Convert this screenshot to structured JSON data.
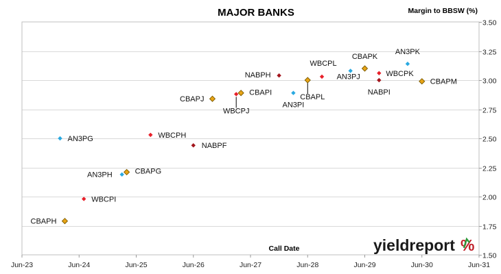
{
  "chart_data": {
    "type": "scatter",
    "title": "MAJOR BANKS",
    "ylabel": "Margin to BBSW (%)",
    "xlabel": "Call Date",
    "x_ticks": [
      "Jun-23",
      "Jun-24",
      "Jun-25",
      "Jun-26",
      "Jun-27",
      "Jun-28",
      "Jun-29",
      "Jun-30",
      "Jun-31"
    ],
    "y_ticks": [
      "1.50",
      "1.75",
      "2.00",
      "2.25",
      "2.50",
      "2.75",
      "3.00",
      "3.25",
      "3.50"
    ],
    "xlim": [
      "2023-06",
      "2031-06"
    ],
    "ylim": [
      1.5,
      3.5
    ],
    "grid": "horizontal",
    "y_axis_side": "right",
    "colors": {
      "ANZ": "#29a9e1",
      "WBC": "#e8202a",
      "NAB": "#a3161d",
      "CBA": "#e8a416",
      "CBA_border": "#7a5a00"
    },
    "points": [
      {
        "label": "CBAPH",
        "date": "2024-03",
        "y": 1.79,
        "group": "CBA"
      },
      {
        "label": "WBCPI",
        "date": "2024-07",
        "y": 1.98,
        "group": "WBC"
      },
      {
        "label": "AN3PG",
        "date": "2024-02",
        "y": 2.5,
        "group": "ANZ"
      },
      {
        "label": "AN3PH",
        "date": "2025-03",
        "y": 2.19,
        "group": "ANZ"
      },
      {
        "label": "CBAPG",
        "date": "2025-04",
        "y": 2.21,
        "group": "CBA"
      },
      {
        "label": "WBCPH",
        "date": "2025-09",
        "y": 2.53,
        "group": "WBC"
      },
      {
        "label": "NABPF",
        "date": "2026-06",
        "y": 2.44,
        "group": "NAB"
      },
      {
        "label": "CBAPJ",
        "date": "2026-10",
        "y": 2.84,
        "group": "CBA"
      },
      {
        "label": "WBCPJ",
        "date": "2027-03",
        "y": 2.88,
        "group": "WBC"
      },
      {
        "label": "CBAPI",
        "date": "2027-04",
        "y": 2.89,
        "group": "CBA"
      },
      {
        "label": "NABPH",
        "date": "2027-12",
        "y": 3.04,
        "group": "NAB"
      },
      {
        "label": "AN3PI",
        "date": "2028-03",
        "y": 2.89,
        "group": "ANZ"
      },
      {
        "label": "CBAPL",
        "date": "2028-06",
        "y": 3.0,
        "group": "CBA"
      },
      {
        "label": "WBCPL",
        "date": "2028-09",
        "y": 3.03,
        "group": "WBC"
      },
      {
        "label": "AN3PJ",
        "date": "2029-03",
        "y": 3.08,
        "group": "ANZ"
      },
      {
        "label": "CBAPK",
        "date": "2029-06",
        "y": 3.1,
        "group": "CBA"
      },
      {
        "label": "NABPI",
        "date": "2029-09",
        "y": 3.0,
        "group": "NAB"
      },
      {
        "label": "WBCPK",
        "date": "2029-09",
        "y": 3.06,
        "group": "WBC"
      },
      {
        "label": "AN3PK",
        "date": "2030-03",
        "y": 3.14,
        "group": "ANZ"
      },
      {
        "label": "CBAPM",
        "date": "2030-06",
        "y": 2.99,
        "group": "CBA"
      }
    ]
  },
  "logo": {
    "main": "yieldreport",
    "pct": "%"
  }
}
